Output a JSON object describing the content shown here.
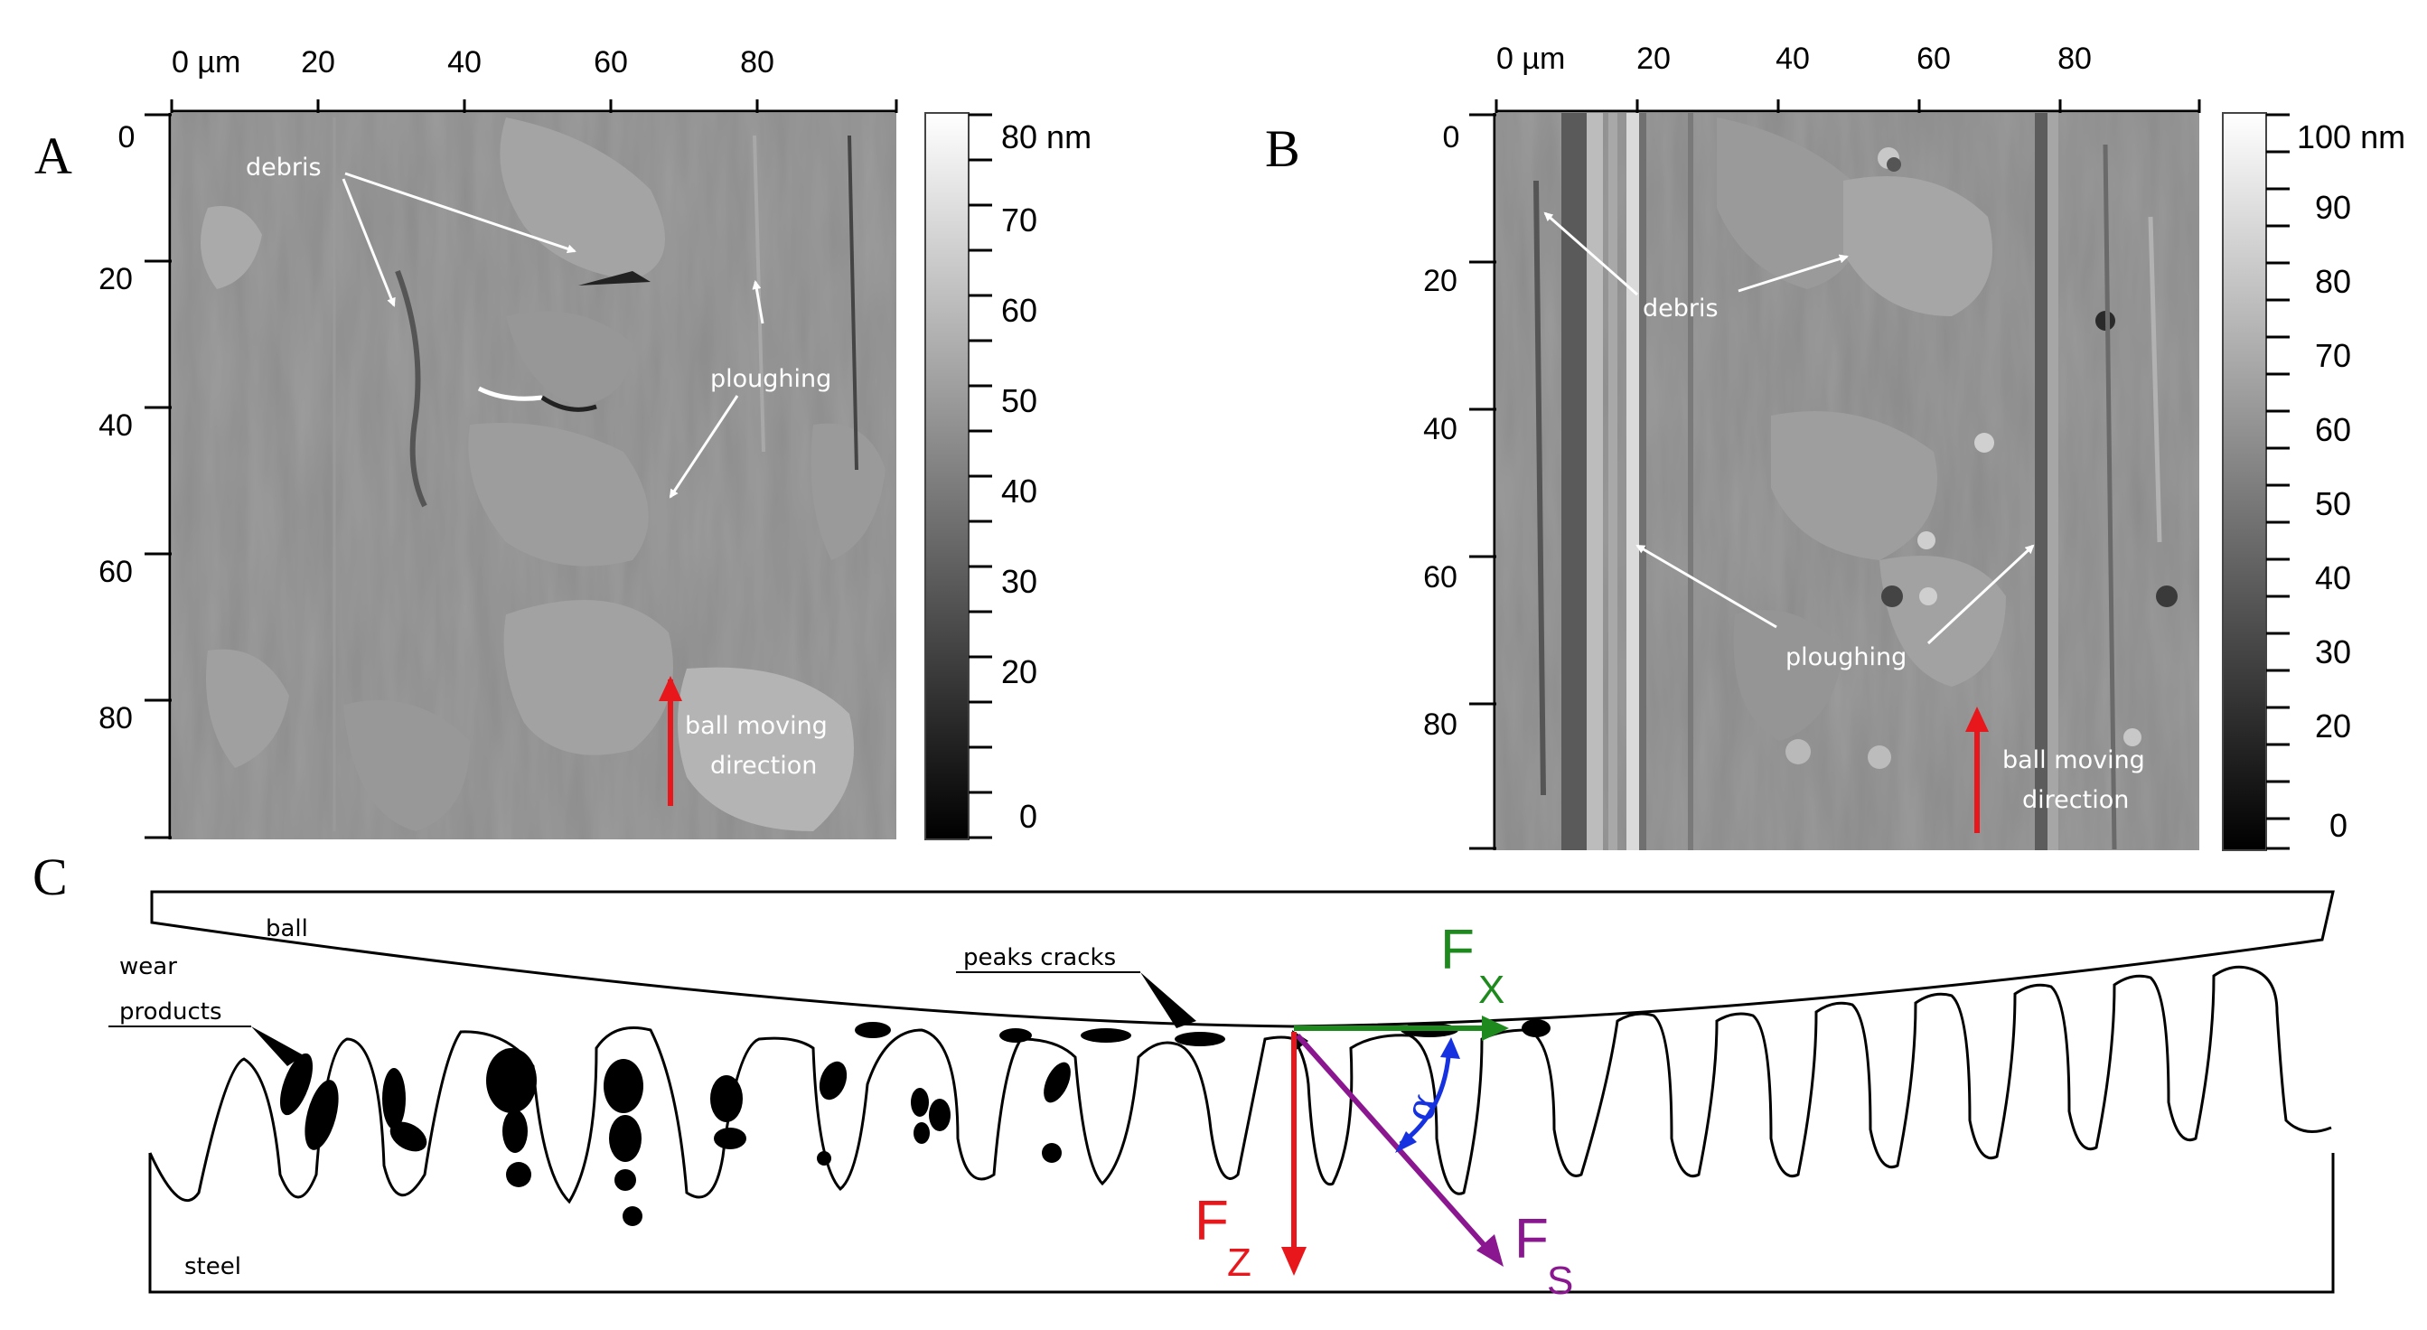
{
  "panel_letters": {
    "a": "A",
    "b": "B",
    "c": "C"
  },
  "panel_a": {
    "x_ticks": [
      "0 µm",
      "20",
      "40",
      "60",
      "80"
    ],
    "y_ticks": [
      "0",
      "20",
      "40",
      "60",
      "80"
    ],
    "colorbar_ticks": [
      "80 nm",
      "70",
      "60",
      "50",
      "40",
      "30",
      "20",
      "0"
    ],
    "annotations": {
      "debris": "debris",
      "ploughing": "ploughing",
      "ball_line1": "ball moving",
      "ball_line2": "direction"
    }
  },
  "panel_b": {
    "x_ticks": [
      "0 µm",
      "20",
      "40",
      "60",
      "80"
    ],
    "y_ticks": [
      "0",
      "20",
      "40",
      "60",
      "80"
    ],
    "colorbar_ticks": [
      "100 nm",
      "90",
      "80",
      "70",
      "60",
      "50",
      "40",
      "30",
      "20",
      "0"
    ],
    "annotations": {
      "debris": "debris",
      "ploughing": "ploughing",
      "ball_line1": "ball moving",
      "ball_line2": "direction"
    }
  },
  "panel_c": {
    "labels": {
      "ball": "ball",
      "wear_line1": "wear",
      "wear_line2": "products",
      "peaks": "peaks cracks",
      "steel": "steel",
      "alpha": "α"
    },
    "forces": {
      "fx": {
        "main": "F",
        "sub": "X"
      },
      "fz": {
        "main": "F",
        "sub": "Z"
      },
      "fs": {
        "main": "F",
        "sub": "S"
      }
    }
  },
  "colors": {
    "fx": "#1e8a1e",
    "fz": "#e8171c",
    "fs": "#8a1690",
    "alpha": "#1632e0",
    "direction_arrow": "#e8171c"
  }
}
